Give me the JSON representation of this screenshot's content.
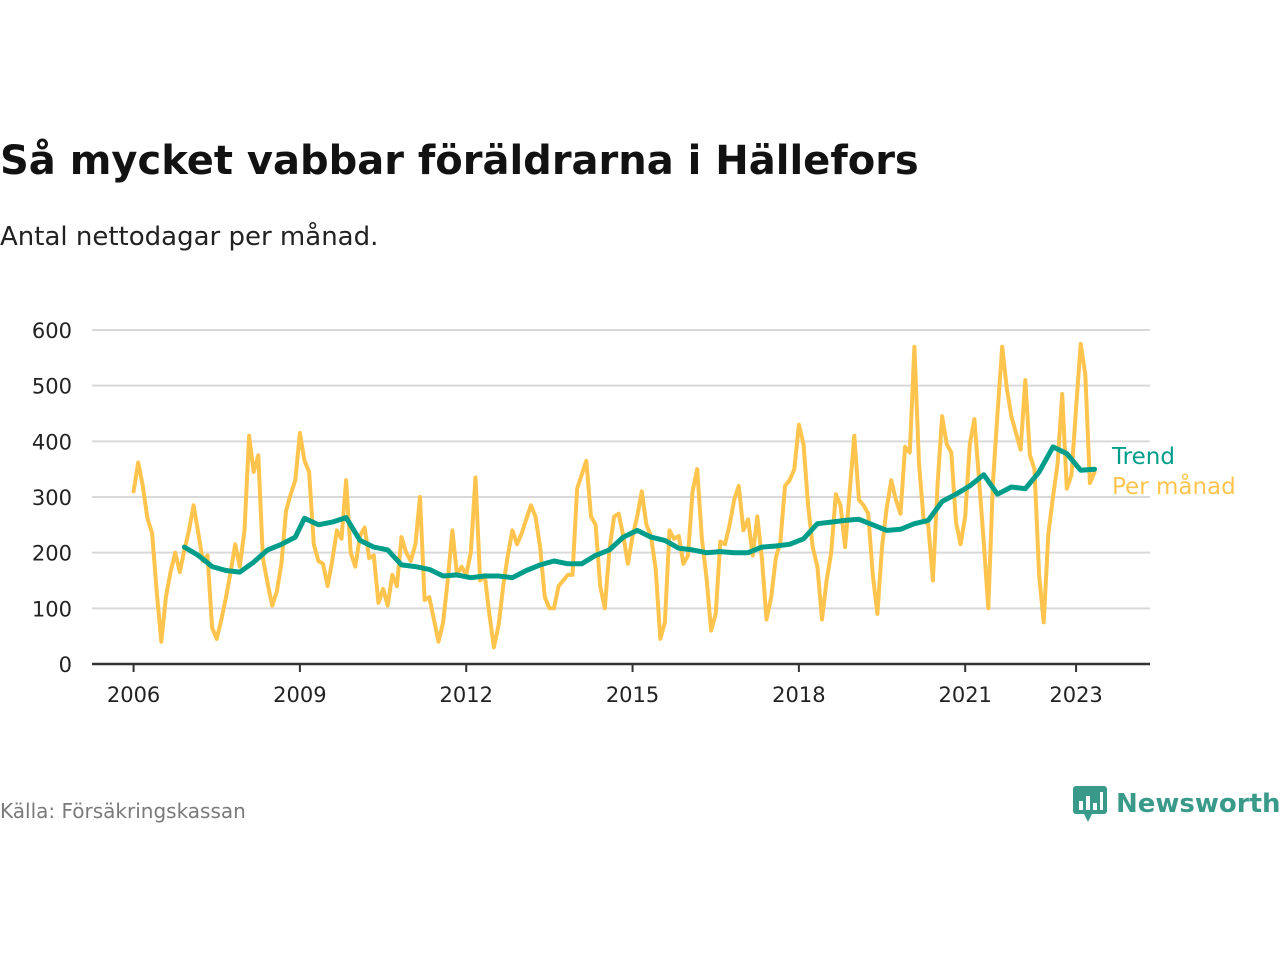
{
  "title": "Så mycket vabbar föräldrarna i Hällefors",
  "subtitle": "Antal nettodagar per månad.",
  "source": "Källa: Försäkringskassan",
  "brand": {
    "name": "Newsworthy",
    "icon": "newsworthy-logo-icon"
  },
  "colors": {
    "monthly": "#FFC44D",
    "trend": "#009E8A",
    "grid": "#d9d9d9",
    "axis": "#333333"
  },
  "chart_data": {
    "type": "line",
    "title": "Så mycket vabbar föräldrarna i Hällefors",
    "xlabel": "",
    "ylabel": "",
    "x_tick_labels": [
      "2006",
      "2009",
      "2012",
      "2015",
      "2018",
      "2021",
      "2023"
    ],
    "y_tick_labels": [
      "0",
      "100",
      "200",
      "300",
      "400",
      "500",
      "600"
    ],
    "ylim": [
      0,
      600
    ],
    "xlim": [
      "2005-04",
      "2024-05"
    ],
    "grid": true,
    "legend": "right-end-labels",
    "series": [
      {
        "name": "Per månad",
        "color": "#FFC44D",
        "x": [
          "2006-01",
          "2006-02",
          "2006-03",
          "2006-04",
          "2006-05",
          "2006-06",
          "2006-07",
          "2006-08",
          "2006-09",
          "2006-10",
          "2006-11",
          "2006-12",
          "2007-01",
          "2007-02",
          "2007-03",
          "2007-04",
          "2007-05",
          "2007-06",
          "2007-07",
          "2007-08",
          "2007-09",
          "2007-10",
          "2007-11",
          "2007-12",
          "2008-01",
          "2008-02",
          "2008-03",
          "2008-04",
          "2008-05",
          "2008-06",
          "2008-07",
          "2008-08",
          "2008-09",
          "2008-10",
          "2008-11",
          "2008-12",
          "2009-01",
          "2009-02",
          "2009-03",
          "2009-04",
          "2009-05",
          "2009-06",
          "2009-07",
          "2009-08",
          "2009-09",
          "2009-10",
          "2009-11",
          "2009-12",
          "2010-01",
          "2010-02",
          "2010-03",
          "2010-04",
          "2010-05",
          "2010-06",
          "2010-07",
          "2010-08",
          "2010-09",
          "2010-10",
          "2010-11",
          "2010-12",
          "2011-01",
          "2011-02",
          "2011-03",
          "2011-04",
          "2011-05",
          "2011-06",
          "2011-07",
          "2011-08",
          "2011-09",
          "2011-10",
          "2011-11",
          "2011-12",
          "2012-01",
          "2012-02",
          "2012-03",
          "2012-04",
          "2012-05",
          "2012-06",
          "2012-07",
          "2012-08",
          "2012-09",
          "2012-10",
          "2012-11",
          "2012-12",
          "2013-01",
          "2013-02",
          "2013-03",
          "2013-04",
          "2013-05",
          "2013-06",
          "2013-07",
          "2013-08",
          "2013-09",
          "2013-10",
          "2013-11",
          "2013-12",
          "2014-01",
          "2014-02",
          "2014-03",
          "2014-04",
          "2014-05",
          "2014-06",
          "2014-07",
          "2014-08",
          "2014-09",
          "2014-10",
          "2014-11",
          "2014-12",
          "2015-01",
          "2015-02",
          "2015-03",
          "2015-04",
          "2015-05",
          "2015-06",
          "2015-07",
          "2015-08",
          "2015-09",
          "2015-10",
          "2015-11",
          "2015-12",
          "2016-01",
          "2016-02",
          "2016-03",
          "2016-04",
          "2016-05",
          "2016-06",
          "2016-07",
          "2016-08",
          "2016-09",
          "2016-10",
          "2016-11",
          "2016-12",
          "2017-01",
          "2017-02",
          "2017-03",
          "2017-04",
          "2017-05",
          "2017-06",
          "2017-07",
          "2017-08",
          "2017-09",
          "2017-10",
          "2017-11",
          "2017-12",
          "2018-01",
          "2018-02",
          "2018-03",
          "2018-04",
          "2018-05",
          "2018-06",
          "2018-07",
          "2018-08",
          "2018-09",
          "2018-10",
          "2018-11",
          "2018-12",
          "2019-01",
          "2019-02",
          "2019-03",
          "2019-04",
          "2019-05",
          "2019-06",
          "2019-07",
          "2019-08",
          "2019-09",
          "2019-10",
          "2019-11",
          "2019-12",
          "2020-01",
          "2020-02",
          "2020-03",
          "2020-04",
          "2020-05",
          "2020-06",
          "2020-07",
          "2020-08",
          "2020-09",
          "2020-10",
          "2020-11",
          "2020-12",
          "2021-01",
          "2021-02",
          "2021-03",
          "2021-04",
          "2021-05",
          "2021-06",
          "2021-07",
          "2021-08",
          "2021-09",
          "2021-10",
          "2021-11",
          "2021-12",
          "2022-01",
          "2022-02",
          "2022-03",
          "2022-04",
          "2022-05",
          "2022-06",
          "2022-07",
          "2022-08",
          "2022-09",
          "2022-10",
          "2022-11",
          "2022-12",
          "2023-01",
          "2023-02",
          "2023-03",
          "2023-04",
          "2023-05"
        ],
        "values": [
          310,
          362,
          320,
          262,
          235,
          130,
          40,
          120,
          165,
          200,
          165,
          205,
          240,
          285,
          235,
          185,
          195,
          65,
          45,
          80,
          120,
          165,
          215,
          175,
          240,
          410,
          345,
          375,
          190,
          145,
          105,
          130,
          180,
          275,
          305,
          330,
          415,
          365,
          345,
          215,
          185,
          180,
          140,
          185,
          240,
          225,
          330,
          200,
          175,
          230,
          245,
          190,
          195,
          110,
          135,
          105,
          160,
          140,
          228,
          200,
          185,
          215,
          300,
          115,
          120,
          80,
          40,
          75,
          150,
          240,
          160,
          175,
          160,
          200,
          335,
          150,
          160,
          90,
          30,
          70,
          140,
          195,
          240,
          215,
          235,
          260,
          285,
          265,
          210,
          120,
          100,
          100,
          140,
          150,
          160,
          160,
          315,
          340,
          365,
          265,
          250,
          140,
          100,
          205,
          265,
          270,
          230,
          180,
          230,
          265,
          310,
          250,
          230,
          170,
          45,
          75,
          240,
          225,
          230,
          180,
          195,
          310,
          350,
          225,
          155,
          60,
          90,
          220,
          215,
          250,
          295,
          320,
          240,
          260,
          195,
          265,
          190,
          80,
          120,
          190,
          220,
          320,
          330,
          350,
          430,
          395,
          285,
          210,
          175,
          80,
          150,
          200,
          305,
          285,
          210,
          310,
          410,
          295,
          285,
          270,
          160,
          90,
          210,
          280,
          330,
          295,
          270,
          390,
          380,
          570,
          360,
          260,
          250,
          150,
          320,
          445,
          395,
          380,
          255,
          215,
          265,
          395,
          440,
          330,
          220,
          100,
          325,
          450,
          570,
          495,
          445,
          415,
          385,
          510,
          375,
          350,
          160,
          75,
          235,
          300,
          360,
          485,
          315,
          340,
          460,
          575,
          520,
          325,
          345
        ],
        "linewidth": 4
      },
      {
        "name": "Trend",
        "color": "#009E8A",
        "x": [
          "2006-12",
          "2007-03",
          "2007-06",
          "2007-09",
          "2007-12",
          "2008-03",
          "2008-06",
          "2008-09",
          "2008-12",
          "2009-02",
          "2009-05",
          "2009-08",
          "2009-11",
          "2010-02",
          "2010-05",
          "2010-08",
          "2010-11",
          "2011-02",
          "2011-05",
          "2011-08",
          "2011-11",
          "2012-02",
          "2012-05",
          "2012-08",
          "2012-11",
          "2013-02",
          "2013-05",
          "2013-08",
          "2013-11",
          "2014-02",
          "2014-05",
          "2014-08",
          "2014-11",
          "2015-02",
          "2015-05",
          "2015-08",
          "2015-11",
          "2016-02",
          "2016-05",
          "2016-08",
          "2016-11",
          "2017-02",
          "2017-05",
          "2017-08",
          "2017-11",
          "2018-02",
          "2018-05",
          "2018-08",
          "2018-11",
          "2019-02",
          "2019-05",
          "2019-08",
          "2019-11",
          "2020-02",
          "2020-05",
          "2020-08",
          "2020-11",
          "2021-02",
          "2021-05",
          "2021-08",
          "2021-11",
          "2022-02",
          "2022-05",
          "2022-08",
          "2022-11",
          "2023-02",
          "2023-05"
        ],
        "values": [
          210,
          195,
          175,
          168,
          165,
          183,
          205,
          215,
          228,
          262,
          250,
          255,
          263,
          222,
          210,
          205,
          178,
          175,
          170,
          158,
          160,
          155,
          158,
          158,
          155,
          168,
          178,
          185,
          180,
          180,
          195,
          205,
          228,
          240,
          228,
          222,
          208,
          205,
          200,
          202,
          200,
          200,
          210,
          212,
          215,
          225,
          252,
          255,
          258,
          260,
          250,
          240,
          242,
          252,
          258,
          292,
          305,
          320,
          340,
          305,
          318,
          315,
          345,
          390,
          378,
          348,
          350
        ],
        "linewidth": 5
      }
    ]
  }
}
